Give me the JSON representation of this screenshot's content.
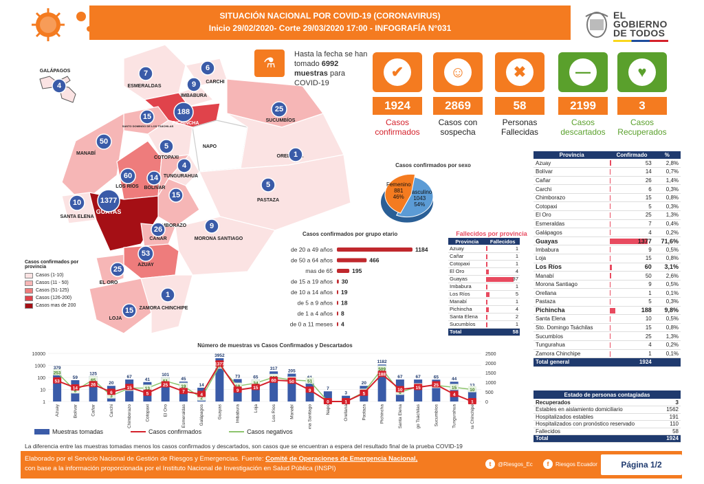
{
  "header": {
    "title": "SITUACIÓN NACIONAL POR  COVID-19 (CORONAVIRUS)",
    "subtitle": "Inicio 29/02/2020- Corte 29/03/2020 17:00  - INFOGRAFÍA N°031"
  },
  "logo": {
    "line1": "EL",
    "line2": "GOBIERNO",
    "line3": "DE TODOS"
  },
  "samples": {
    "text_pre": "Hasta la fecha se han tomado",
    "count": "6992",
    "text_mid": "muestras",
    "text_post": "para COVID-19"
  },
  "cards": [
    {
      "value": "1924",
      "label": "Casos confirmados",
      "color": "#d4202a",
      "bg": "#f47b20",
      "icon": "check-icon"
    },
    {
      "value": "2869",
      "label": "Casos con sospecha",
      "color": "#222222",
      "bg": "#f47b20",
      "icon": "suspect-icon"
    },
    {
      "value": "58",
      "label": "Personas Fallecidas",
      "color": "#222222",
      "bg": "#f47b20",
      "icon": "deceased-icon"
    },
    {
      "value": "2199",
      "label": "Casos descartados",
      "color": "#5aa02c",
      "bg": "#5aa02c",
      "icon": "minus-icon"
    },
    {
      "value": "3",
      "label": "Casos Recuperados",
      "color": "#5aa02c",
      "bg": "#5aa02c",
      "icon": "recovered-icon"
    }
  ],
  "map": {
    "labels": {
      "galapagos": "GALÁPAGOS",
      "esmeraldas": "ESMERALDAS",
      "imbabura": "IMBABURA",
      "carchi": "CARCHI",
      "pichincha": "PICHINCHA",
      "sucumbios": "SUCUMBÍOS",
      "manabi": "MANABÍ",
      "santo_domingo": "SANTO DOMINGO DE LOS TSÁCHILAS",
      "napo": "NAPO",
      "orellana": "ORELLANA",
      "cotopaxi": "COTOPAXI",
      "los_rios": "LOS RÍOS",
      "tungurahua": "TUNGURAHUA",
      "bolivar": "BOLÍVAR",
      "pastaza": "PASTAZA",
      "chimborazo": "CHIMBORAZO",
      "santa_elena": "SANTA ELENA",
      "guayas": "GUAYAS",
      "canar": "CAÑAR",
      "morona": "MORONA SANTIAGO",
      "azuay": "AZUAY",
      "el_oro": "EL ORO",
      "loja": "LOJA",
      "zamora": "ZAMORA CHINCHIPE"
    },
    "values": {
      "galapagos": "4",
      "esmeraldas": "7",
      "imbabura": "9",
      "carchi": "6",
      "pichincha": "188",
      "sucumbios": "25",
      "manabi": "50",
      "santo_domingo": "15",
      "cotopaxi": "5",
      "orellana": "1",
      "los_rios": "60",
      "tungurahua": "4",
      "bolivar": "14",
      "pastaza": "5",
      "chimborazo": "15",
      "santa_elena": "10",
      "guayas": "1377",
      "canar": "26",
      "morona": "9",
      "azuay": "53",
      "el_oro": "25",
      "loja": "15",
      "zamora": "1"
    },
    "legend": {
      "title": "Casos confirmados por provincia",
      "items": [
        {
          "label": "Casos (1-10)",
          "color": "#fbe3e3"
        },
        {
          "label": "Casos (11 - 50)",
          "color": "#f6b6b6"
        },
        {
          "label": "Casos (51-125)",
          "color": "#ee7c7c"
        },
        {
          "label": "Casos (126-200)",
          "color": "#e0434b"
        },
        {
          "label": "Casos mas de 200",
          "color": "#a50f15"
        }
      ]
    }
  },
  "chart_data": [
    {
      "type": "pie",
      "title": "Casos confirmados por sexo",
      "slices": [
        {
          "label": "Masculino",
          "value": 1043,
          "percent": "54%",
          "color": "#5b9bd5"
        },
        {
          "label": "Femenino",
          "value": 881,
          "percent": "46%",
          "color": "#f47b20"
        }
      ]
    },
    {
      "type": "bar",
      "orientation": "horizontal",
      "title": "Casos confirmados por grupo etario",
      "categories": [
        "de 20 a 49 años",
        "de 50 a 64 años",
        "mas de 65",
        "de 15 a 19 años",
        "de 10 a 14 años",
        "de 5 a 9 años",
        "de 1 a 4 años",
        "de 0 a 11 meses"
      ],
      "values": [
        1184,
        466,
        195,
        30,
        19,
        18,
        8,
        4
      ],
      "color": "#c0282d"
    },
    {
      "type": "bar",
      "title": "Número de muestras vs Casos Confirmados y Descartados",
      "categories": [
        "Azuay",
        "Bolívar",
        "Cañar",
        "Carchi",
        "Chimborazo",
        "Cotopaxi",
        "El Oro",
        "Esmeraldas",
        "Galápagos",
        "Guayas",
        "Imbabura",
        "Loja",
        "Los Ríos",
        "Manabí",
        "Morona Santiago",
        "Napo",
        "Orellana",
        "Pastaza",
        "Pichincha",
        "Santa Elena",
        "Sto. Domingo Tsáchilas",
        "Sucumbíos",
        "Tungurahua",
        "Zamora Chinchipe"
      ],
      "series": [
        {
          "name": "Muestras tomadas",
          "kind": "bar",
          "color": "#3a5ba8",
          "values": [
            379,
            59,
            125,
            20,
            67,
            41,
            101,
            45,
            14,
            3952,
            73,
            65,
            317,
            205,
            61,
            7,
            3,
            20,
            1182,
            67,
            67,
            65,
            44,
            13
          ]
        },
        {
          "name": "Casos confirmados",
          "kind": "line",
          "color": "#d4202a",
          "values": [
            53,
            14,
            26,
            6,
            15,
            5,
            25,
            7,
            4,
            1377,
            9,
            15,
            60,
            50,
            9,
            0,
            1,
            5,
            188,
            10,
            15,
            25,
            4,
            1
          ]
        },
        {
          "name": "Casos negativos",
          "kind": "line",
          "color": "#8cc46c",
          "values": [
            253,
            8,
            65,
            3,
            13,
            13,
            51,
            19,
            2,
            916,
            19,
            34,
            103,
            61,
            51,
            1,
            1,
            6,
            509,
            6,
            17,
            22,
            15,
            10
          ]
        }
      ],
      "yaxis_left": {
        "scale": "log",
        "ticks": [
          "10000",
          "1000",
          "100",
          "10",
          "1"
        ]
      },
      "yaxis_right": {
        "ticks": [
          "2500",
          "2000",
          "1500",
          "1000",
          "500",
          "0"
        ]
      }
    }
  ],
  "province_table": {
    "headers": [
      "Provincia",
      "Confirmado",
      "%"
    ],
    "rows": [
      {
        "name": "Azuay",
        "value": "53",
        "pct": "2,8%",
        "bold": false
      },
      {
        "name": "Bolívar",
        "value": "14",
        "pct": "0,7%",
        "bold": false
      },
      {
        "name": "Cañar",
        "value": "26",
        "pct": "1,4%",
        "bold": false
      },
      {
        "name": "Carchi",
        "value": "6",
        "pct": "0,3%",
        "bold": false
      },
      {
        "name": "Chimborazo",
        "value": "15",
        "pct": "0,8%",
        "bold": false
      },
      {
        "name": "Cotopaxi",
        "value": "5",
        "pct": "0,3%",
        "bold": false
      },
      {
        "name": "El Oro",
        "value": "25",
        "pct": "1,3%",
        "bold": false
      },
      {
        "name": "Esmeraldas",
        "value": "7",
        "pct": "0,4%",
        "bold": false
      },
      {
        "name": "Galápagos",
        "value": "4",
        "pct": "0,2%",
        "bold": false
      },
      {
        "name": "Guayas",
        "value": "1377",
        "pct": "71,6%",
        "bold": true
      },
      {
        "name": "Imbabura",
        "value": "9",
        "pct": "0,5%",
        "bold": false
      },
      {
        "name": "Loja",
        "value": "15",
        "pct": "0,8%",
        "bold": false
      },
      {
        "name": "Los Ríos",
        "value": "60",
        "pct": "3,1%",
        "bold": true
      },
      {
        "name": "Manabí",
        "value": "50",
        "pct": "2,6%",
        "bold": false
      },
      {
        "name": "Morona Santiago",
        "value": "9",
        "pct": "0,5%",
        "bold": false
      },
      {
        "name": "Orellana",
        "value": "1",
        "pct": "0,1%",
        "bold": false
      },
      {
        "name": "Pastaza",
        "value": "5",
        "pct": "0,3%",
        "bold": false
      },
      {
        "name": "Pichincha",
        "value": "188",
        "pct": "9,8%",
        "bold": true
      },
      {
        "name": "Santa Elena",
        "value": "10",
        "pct": "0,5%",
        "bold": false
      },
      {
        "name": "Sto. Domingo Tsáchilas",
        "value": "15",
        "pct": "0,8%",
        "bold": false
      },
      {
        "name": "Sucumbíos",
        "value": "25",
        "pct": "1,3%",
        "bold": false
      },
      {
        "name": "Tungurahua",
        "value": "4",
        "pct": "0,2%",
        "bold": false
      },
      {
        "name": "Zamora Chinchipe",
        "value": "1",
        "pct": "0,1%",
        "bold": false
      }
    ],
    "total_label": "Total general",
    "total_value": "1924"
  },
  "deaths_table": {
    "title": "Fallecidos por provincia",
    "headers": [
      "Provincia",
      "Fallecidos"
    ],
    "rows": [
      {
        "name": "Azuay",
        "value": "1"
      },
      {
        "name": "Cañar",
        "value": "1"
      },
      {
        "name": "Cotopaxi",
        "value": "1"
      },
      {
        "name": "El Oro",
        "value": "4"
      },
      {
        "name": "Guayas",
        "value": "37"
      },
      {
        "name": "Imbabura",
        "value": "1"
      },
      {
        "name": "Los Ríos",
        "value": "5"
      },
      {
        "name": "Manabí",
        "value": "1"
      },
      {
        "name": "Pichincha",
        "value": "4"
      },
      {
        "name": "Santa Elena",
        "value": "2"
      },
      {
        "name": "Sucumbíos",
        "value": "1"
      }
    ],
    "total_label": "Total",
    "total_value": "58"
  },
  "states_table": {
    "title": "Estado de personas contagiadas",
    "rows": [
      {
        "name": "Recuperados",
        "value": "3",
        "bold": true
      },
      {
        "name": "Estables en aislamiento domiciliario",
        "value": "1562",
        "bold": false
      },
      {
        "name": "Hospitalizados estables",
        "value": "191",
        "bold": false
      },
      {
        "name": "Hospitalizados con pronóstico reservado",
        "value": "110",
        "bold": false
      },
      {
        "name": "Fallecidos",
        "value": "58",
        "bold": false
      }
    ],
    "total_label": "Total",
    "total_value": "1924"
  },
  "note": "La diferencia entre las muestras tomadas menos los casos confirmados y descartados, son casos que se encuentran a espera del resultado final de la prueba COVID-19",
  "footer": {
    "line1_pre": "Elaborado por el Servicio Nacional de Gestión de Riesgos y Emergencias. Fuente: ",
    "line1_link": "Comité de Operaciones de Emergencia Nacional,",
    "line2": "con base a la información proporcionada por el Instituto Nacional de Investigación en Salud Pública (INSPI)",
    "twitter": "@Riesgos_Ec",
    "facebook": "Riesgos Ecuador",
    "page": "Página 1/2"
  }
}
